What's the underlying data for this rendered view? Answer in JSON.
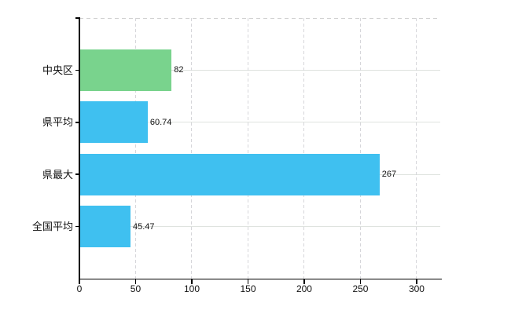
{
  "chart": {
    "background": "#ffffff",
    "axis_color": "#000000",
    "grid_h_color": "#dfe3df",
    "grid_v_color": "#d6d6da",
    "top_border_color": "#d2d2d2",
    "text_color": "#111111"
  },
  "chart_data": {
    "type": "bar",
    "orientation": "horizontal",
    "title": "",
    "xlabel": "",
    "ylabel": "",
    "categories": [
      "中央区",
      "県平均",
      "県最大",
      "全国平均"
    ],
    "values": [
      82,
      60.74,
      267,
      45.47
    ],
    "value_labels": [
      "82",
      "60.74",
      "267",
      "45.47"
    ],
    "bar_colors": [
      "#79d38d",
      "#3fc0f0",
      "#3fc0f0",
      "#3fc0f0"
    ],
    "xlim": [
      0,
      321
    ],
    "x_ticks": [
      0,
      50,
      100,
      150,
      200,
      250,
      300
    ],
    "x_tick_labels": [
      "0",
      "50",
      "100",
      "150",
      "200",
      "250",
      "300"
    ],
    "grid": "on",
    "legend": "none"
  }
}
